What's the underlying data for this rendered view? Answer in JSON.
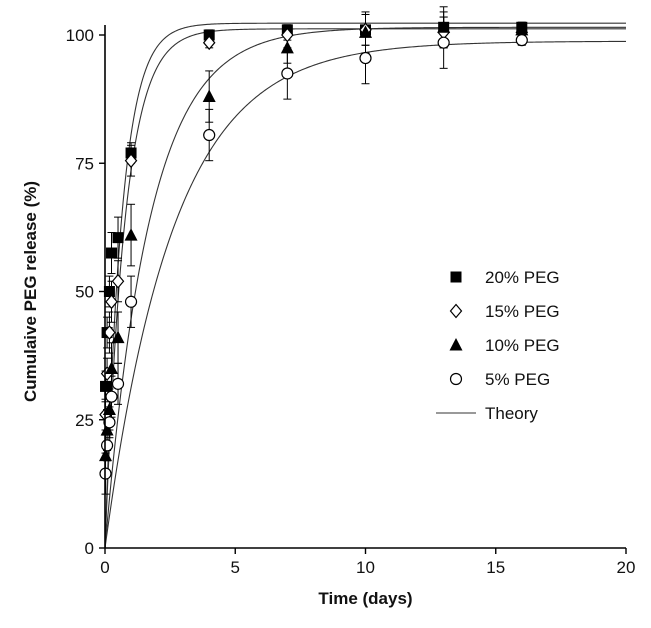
{
  "chart_data": {
    "type": "scatter",
    "title": "",
    "xlabel": "Time (days)",
    "ylabel": "Cumulaive PEG release (%)",
    "xlim": [
      0,
      20
    ],
    "ylim": [
      0,
      100
    ],
    "xticks": [
      0,
      5,
      10,
      15,
      20
    ],
    "yticks": [
      0,
      25,
      50,
      75,
      100
    ],
    "grid": false,
    "legend_position": "right",
    "series": [
      {
        "name": "20% PEG",
        "marker": "filled-square",
        "x": [
          0.02,
          0.08,
          0.17,
          0.25,
          0.5,
          1,
          4,
          7,
          10,
          13,
          16
        ],
        "y": [
          31.5,
          42,
          50,
          57.5,
          60.5,
          77,
          100,
          101,
          101,
          101.5,
          101.5
        ],
        "err": [
          3,
          3,
          3,
          4,
          4,
          2,
          1,
          1,
          3,
          3,
          1
        ],
        "theory": {
          "plateau": 102.3,
          "k": 1.55
        }
      },
      {
        "name": "15% PEG",
        "marker": "open-diamond",
        "x": [
          0.02,
          0.08,
          0.17,
          0.25,
          0.5,
          1,
          4,
          7,
          10,
          13,
          16
        ],
        "y": [
          26,
          34,
          42,
          48,
          52,
          75.5,
          98.5,
          100,
          101,
          100.5,
          100.5
        ],
        "err": [
          3,
          3,
          4,
          4,
          4,
          3,
          1,
          1,
          3,
          3,
          1
        ],
        "theory": {
          "plateau": 101.2,
          "k": 1.3
        }
      },
      {
        "name": "10% PEG",
        "marker": "filled-triangle",
        "x": [
          0.02,
          0.08,
          0.17,
          0.25,
          0.5,
          1,
          4,
          7,
          10,
          13,
          16
        ],
        "y": [
          18,
          23,
          27,
          35,
          41,
          61,
          88,
          97.5,
          100.5,
          101.5,
          101
        ],
        "err": [
          4,
          4,
          4,
          5,
          5,
          6,
          5,
          3,
          4,
          4,
          1
        ],
        "theory": {
          "plateau": 101.5,
          "k": 0.58
        }
      },
      {
        "name": "5% PEG",
        "marker": "open-circle",
        "x": [
          0.02,
          0.08,
          0.17,
          0.25,
          0.5,
          1,
          4,
          7,
          10,
          13,
          16
        ],
        "y": [
          14.5,
          20,
          24.5,
          29.5,
          32,
          48,
          80.5,
          92.5,
          95.5,
          98.5,
          99
        ],
        "err": [
          4,
          3,
          3,
          4,
          4,
          5,
          5,
          5,
          5,
          5,
          1
        ],
        "theory": {
          "plateau": 98.8,
          "k": 0.38
        }
      }
    ],
    "theory_label": "Theory"
  }
}
